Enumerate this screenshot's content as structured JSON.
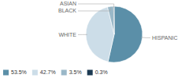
{
  "chart_data": {
    "type": "pie",
    "categories": [
      "HISPANIC",
      "WHITE",
      "BLACK",
      "ASIAN"
    ],
    "values": [
      53.5,
      42.7,
      3.5,
      0.3
    ],
    "value_labels": [
      "53.5%",
      "42.7%",
      "3.5%",
      "0.3%"
    ],
    "colors": [
      "#5b8fa8",
      "#ccdde8",
      "#9ab8c8",
      "#1c3a52"
    ],
    "legend": "bottom"
  }
}
